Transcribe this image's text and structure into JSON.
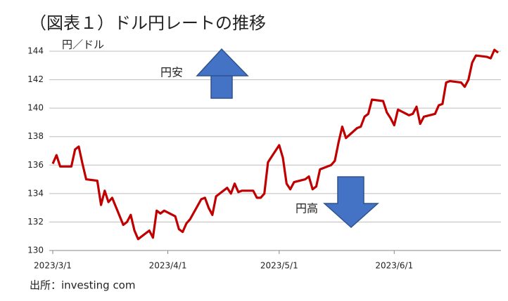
{
  "chart_data": {
    "type": "line",
    "title": "（図表１）ドル円レートの推移",
    "y_label": "円／ドル",
    "annotations": [
      "円安",
      "円高"
    ],
    "source": "出所：investing com",
    "x": [
      "2023-03-01",
      "2023-03-02",
      "2023-03-03",
      "2023-03-06",
      "2023-03-07",
      "2023-03-08",
      "2023-03-09",
      "2023-03-10",
      "2023-03-13",
      "2023-03-14",
      "2023-03-15",
      "2023-03-16",
      "2023-03-17",
      "2023-03-20",
      "2023-03-21",
      "2023-03-22",
      "2023-03-23",
      "2023-03-24",
      "2023-03-27",
      "2023-03-28",
      "2023-03-29",
      "2023-03-30",
      "2023-03-31",
      "2023-04-03",
      "2023-04-04",
      "2023-04-05",
      "2023-04-06",
      "2023-04-07",
      "2023-04-10",
      "2023-04-11",
      "2023-04-12",
      "2023-04-13",
      "2023-04-14",
      "2023-04-17",
      "2023-04-18",
      "2023-04-19",
      "2023-04-20",
      "2023-04-21",
      "2023-04-24",
      "2023-04-25",
      "2023-04-26",
      "2023-04-27",
      "2023-04-28",
      "2023-05-01",
      "2023-05-02",
      "2023-05-03",
      "2023-05-04",
      "2023-05-05",
      "2023-05-08",
      "2023-05-09",
      "2023-05-10",
      "2023-05-11",
      "2023-05-12",
      "2023-05-15",
      "2023-05-16",
      "2023-05-17",
      "2023-05-18",
      "2023-05-19",
      "2023-05-22",
      "2023-05-23",
      "2023-05-24",
      "2023-05-25",
      "2023-05-26",
      "2023-05-29",
      "2023-05-30",
      "2023-05-31",
      "2023-06-01",
      "2023-06-02",
      "2023-06-05",
      "2023-06-06",
      "2023-06-07",
      "2023-06-08",
      "2023-06-09",
      "2023-06-12",
      "2023-06-13",
      "2023-06-14",
      "2023-06-15",
      "2023-06-16",
      "2023-06-19",
      "2023-06-20",
      "2023-06-21",
      "2023-06-22",
      "2023-06-23",
      "2023-06-26",
      "2023-06-27",
      "2023-06-28",
      "2023-06-29"
    ],
    "series": [
      {
        "name": "USD/JPY",
        "color": "#c00000",
        "values": [
          136.1,
          136.7,
          135.9,
          135.9,
          137.1,
          137.3,
          136.1,
          135.0,
          134.9,
          133.2,
          134.2,
          133.4,
          133.7,
          131.8,
          132.0,
          132.5,
          131.4,
          130.8,
          131.4,
          130.9,
          132.8,
          132.6,
          132.8,
          132.4,
          131.5,
          131.3,
          131.9,
          132.2,
          133.6,
          133.7,
          133.0,
          132.5,
          133.8,
          134.4,
          134.0,
          134.7,
          134.1,
          134.2,
          134.2,
          133.7,
          133.7,
          134.0,
          136.2,
          137.4,
          136.5,
          134.7,
          134.3,
          134.8,
          135.0,
          135.2,
          134.3,
          134.5,
          135.7,
          136.0,
          136.3,
          137.6,
          138.7,
          137.9,
          138.6,
          138.7,
          139.4,
          139.6,
          140.6,
          140.5,
          139.7,
          139.3,
          138.8,
          139.9,
          139.5,
          139.6,
          140.1,
          138.9,
          139.4,
          139.6,
          140.2,
          140.3,
          141.8,
          141.9,
          141.8,
          141.5,
          142.0,
          143.2,
          143.7,
          143.6,
          143.5,
          144.1,
          143.9
        ]
      }
    ],
    "xlim": [
      "2023-03-01",
      "2023-06-29"
    ],
    "xticks": [
      {
        "value": "2023-03-01",
        "label": "2023/3/1"
      },
      {
        "value": "2023-04-01",
        "label": "2023/4/1"
      },
      {
        "value": "2023-05-01",
        "label": "2023/5/1"
      },
      {
        "value": "2023-06-01",
        "label": "2023/6/1"
      }
    ],
    "ylim": [
      130,
      144
    ],
    "yticks": [
      130,
      132,
      134,
      136,
      138,
      140,
      142,
      144
    ],
    "grid": true
  }
}
